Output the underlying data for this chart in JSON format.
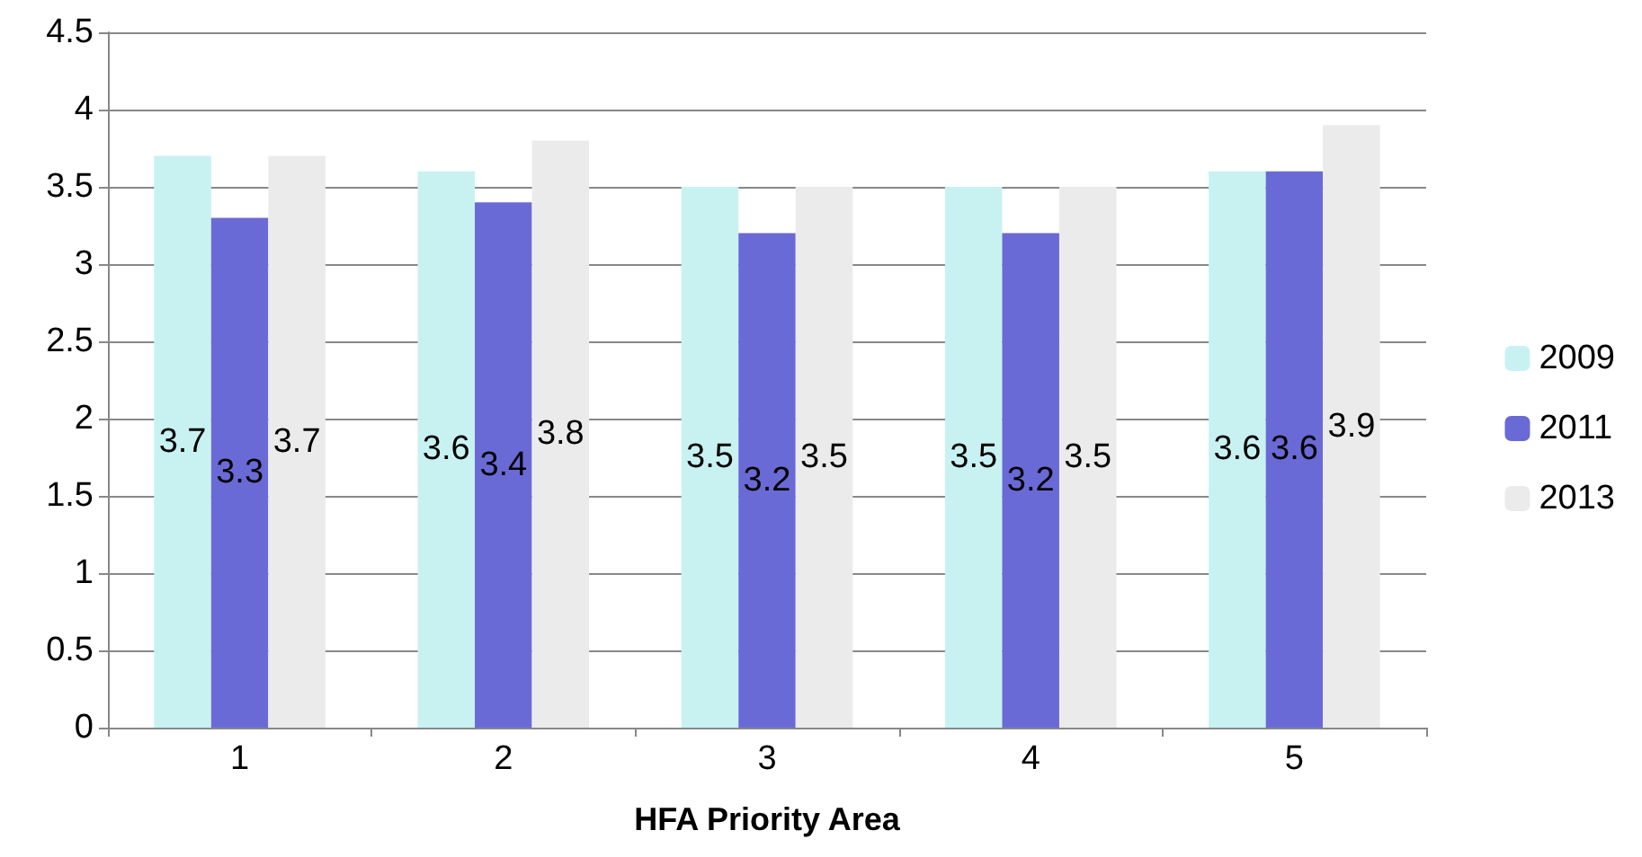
{
  "chart_data": {
    "type": "bar",
    "xlabel": "HFA Priority Area",
    "categories": [
      "1",
      "2",
      "3",
      "4",
      "5"
    ],
    "series": [
      {
        "name": "2009",
        "color": "#c8f2f2",
        "values": [
          3.7,
          3.6,
          3.5,
          3.5,
          3.6
        ]
      },
      {
        "name": "2011",
        "color": "#6a6ad6",
        "values": [
          3.3,
          3.4,
          3.2,
          3.2,
          3.6
        ]
      },
      {
        "name": "2013",
        "color": "#ebebeb",
        "values": [
          3.7,
          3.8,
          3.5,
          3.5,
          3.9
        ]
      }
    ],
    "ylim": [
      0,
      4.5
    ],
    "yticks": [
      0,
      0.5,
      1,
      1.5,
      2,
      2.5,
      3,
      3.5,
      4,
      4.5
    ],
    "grid": "y",
    "legend": "right",
    "data_labels": true
  }
}
